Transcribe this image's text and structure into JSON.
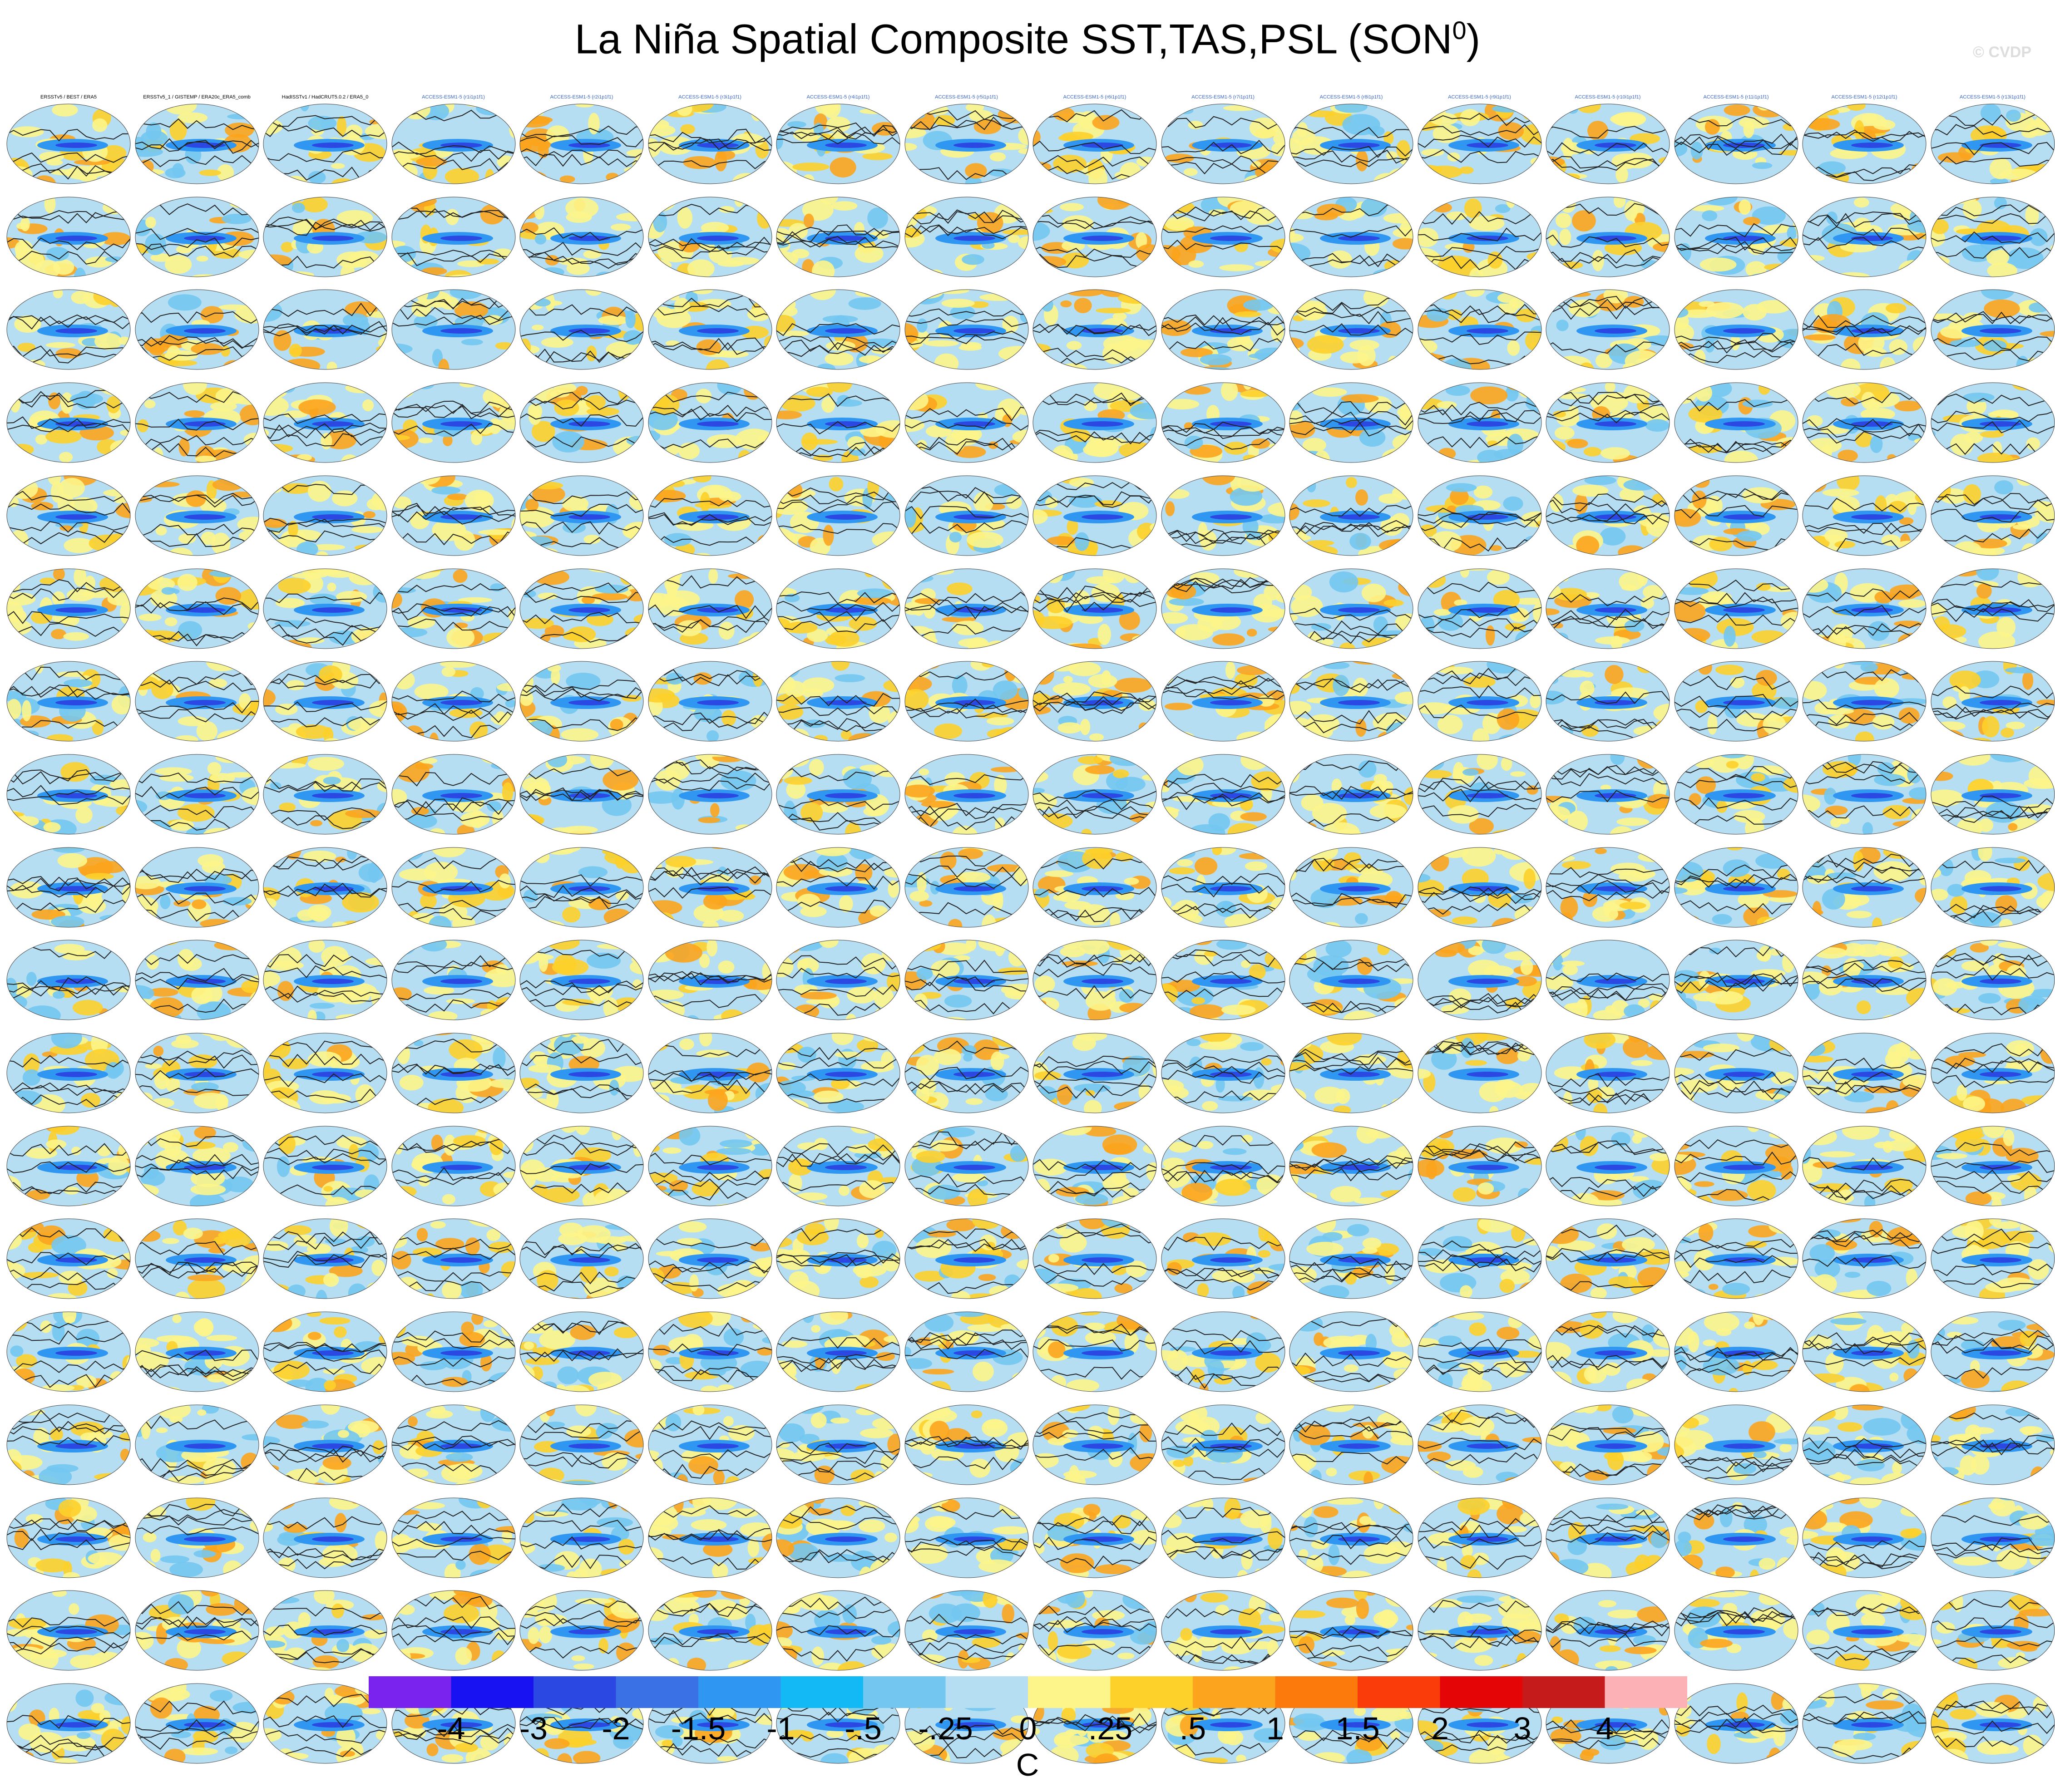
{
  "title": {
    "main": "La Niña Spatial Composite SST,TAS,PSL (SON",
    "sup": "0",
    "close": ")"
  },
  "watermark": "© CVDP",
  "chart_data": {
    "type": "heatmap",
    "layout": {
      "rows": 18,
      "cols": 16,
      "panel_count": 288
    },
    "panel_titles_row1": [
      "ERSSTv5 / BEST / ERA5",
      "ERSSTv5_1 / GISTEMP / ERA20c_ERA5_comb",
      "HadISSTv1 / HadCRUT5.0.2 / ERA5_0",
      "ACCESS-ESM1-5 (r1i1p1f1)",
      "ACCESS-ESM1-5 (r2i1p1f1)",
      "ACCESS-ESM1-5 (r3i1p1f1)",
      "ACCESS-ESM1-5 (r4i1p1f1)",
      "ACCESS-ESM1-5 (r5i1p1f1)",
      "ACCESS-ESM1-5 (r6i1p1f1)",
      "ACCESS-ESM1-5 (r7i1p1f1)",
      "ACCESS-ESM1-5 (r8i1p1f1)",
      "ACCESS-ESM1-5 (r9i1p1f1)",
      "ACCESS-ESM1-5 (r10i1p1f1)",
      "ACCESS-ESM1-5 (r11i1p1f1)",
      "ACCESS-ESM1-5 (r12i1p1f1)",
      "ACCESS-ESM1-5 (r13i1p1f1)"
    ],
    "colorbar": {
      "unit": "C",
      "tick_labels": [
        "-4",
        "-3",
        "-2",
        "-1.5",
        "-1",
        "-.5",
        "-.25",
        "0",
        ".25",
        ".5",
        "1",
        "1.5",
        "2",
        "3",
        "4"
      ],
      "colors": [
        "#7a22ee",
        "#1812f2",
        "#2b48e3",
        "#3a72e6",
        "#2f96f2",
        "#12b9f4",
        "#73c6f0",
        "#b6def3",
        "#fdf58a",
        "#fdd02a",
        "#fca41d",
        "#fb7a0b",
        "#f93c0a",
        "#e40607",
        "#c51b1b",
        "#fbb1b5"
      ]
    }
  }
}
